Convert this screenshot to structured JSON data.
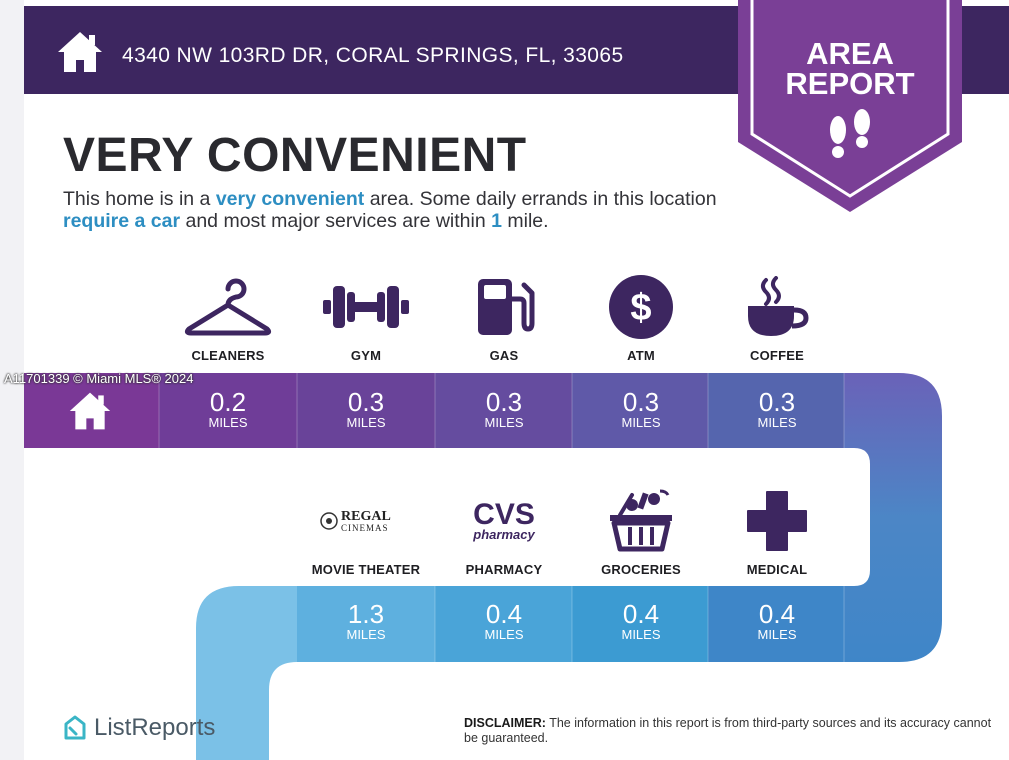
{
  "header": {
    "address": "4340 NW 103RD DR, CORAL SPRINGS, FL, 33065"
  },
  "badge": {
    "line1": "AREA",
    "line2": "REPORT"
  },
  "summary": {
    "title": "VERY CONVENIENT",
    "desc_part1": "This home is in a ",
    "desc_hl1": "very convenient",
    "desc_part2": " area. Some daily errands in this location ",
    "desc_hl2": "require a car",
    "desc_part3": " and most major services are within ",
    "desc_hl3": "1",
    "desc_part4": " mile."
  },
  "row1": [
    {
      "label": "CLEANERS",
      "icon": "hanger-icon",
      "distance": "0.2",
      "unit": "MILES"
    },
    {
      "label": "GYM",
      "icon": "dumbbell-icon",
      "distance": "0.3",
      "unit": "MILES"
    },
    {
      "label": "GAS",
      "icon": "gas-pump-icon",
      "distance": "0.3",
      "unit": "MILES"
    },
    {
      "label": "ATM",
      "icon": "dollar-icon",
      "distance": "0.3",
      "unit": "MILES"
    },
    {
      "label": "COFFEE",
      "icon": "coffee-cup-icon",
      "distance": "0.3",
      "unit": "MILES"
    }
  ],
  "row2": [
    {
      "label": "MOVIE THEATER",
      "icon": "regal-cinemas-logo",
      "logo_line1": "REGAL",
      "logo_line2": "CINEMAS",
      "distance": "1.3",
      "unit": "MILES"
    },
    {
      "label": "PHARMACY",
      "icon": "cvs-pharmacy-logo",
      "logo_line1": "CVS",
      "logo_line2": "pharmacy",
      "distance": "0.4",
      "unit": "MILES"
    },
    {
      "label": "GROCERIES",
      "icon": "grocery-basket-icon",
      "distance": "0.4",
      "unit": "MILES"
    },
    {
      "label": "MEDICAL",
      "icon": "medical-cross-icon",
      "distance": "0.4",
      "unit": "MILES"
    }
  ],
  "watermark": "A11701339 © Miami MLS® 2024",
  "footer": {
    "brand": "ListReports",
    "disclaimer_label": "DISCLAIMER:",
    "disclaimer_text": " The information in this report is from third-party sources and its accuracy cannot be guaranteed."
  },
  "colors": {
    "header": "#3d2660",
    "badge": "#7a3f96",
    "highlight": "#2d8ec2"
  }
}
